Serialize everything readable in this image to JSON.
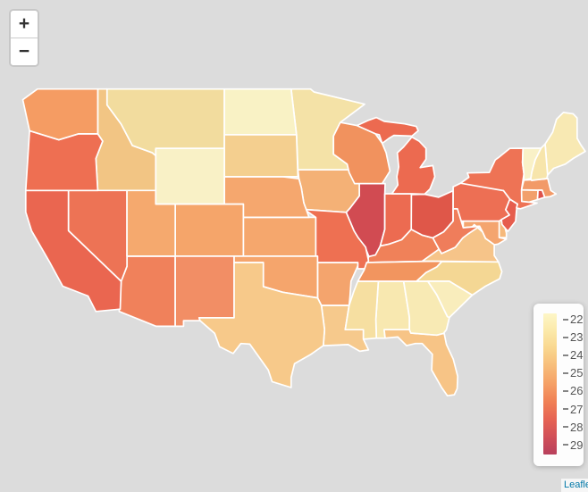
{
  "map": {
    "background_color": "#dcdcdc",
    "border_color": "#ffffff"
  },
  "zoom_control": {
    "zoom_in_label": "+",
    "zoom_out_label": "−"
  },
  "attribution": {
    "text": "Leaflet"
  },
  "legend": {
    "ticks": [
      "22",
      "23",
      "24",
      "25",
      "26",
      "27",
      "28",
      "29"
    ],
    "gradient_stops": [
      "#FDF6C7",
      "#FBE9A9",
      "#F9D68E",
      "#F7BC79",
      "#F5A066",
      "#F08055",
      "#E66353",
      "#D14F58",
      "#B8405C"
    ]
  },
  "states": [
    {
      "name": "Alabama",
      "abbr": "AL",
      "value": 22.7,
      "color": "#F8E8B0"
    },
    {
      "name": "Arizona",
      "abbr": "AZ",
      "value": 26.5,
      "color": "#F0815B"
    },
    {
      "name": "Arkansas",
      "abbr": "AR",
      "value": 25.3,
      "color": "#F4A46D"
    },
    {
      "name": "California",
      "abbr": "CA",
      "value": 27.3,
      "color": "#EA6650"
    },
    {
      "name": "Colorado",
      "abbr": "CO",
      "value": 25.3,
      "color": "#F5A56A"
    },
    {
      "name": "Connecticut",
      "abbr": "CT",
      "value": 25.5,
      "color": "#F2A06C"
    },
    {
      "name": "Delaware",
      "abbr": "DE",
      "value": 24.7,
      "color": "#F6B97B"
    },
    {
      "name": "Florida",
      "abbr": "FL",
      "value": 24.4,
      "color": "#F7C486"
    },
    {
      "name": "Georgia",
      "abbr": "GA",
      "value": 22.6,
      "color": "#F8EAB4"
    },
    {
      "name": "Idaho",
      "abbr": "ID",
      "value": 24.3,
      "color": "#F2C584"
    },
    {
      "name": "Illinois",
      "abbr": "IL",
      "value": 28.6,
      "color": "#D14B52"
    },
    {
      "name": "Indiana",
      "abbr": "IN",
      "value": 27.2,
      "color": "#EC6B51"
    },
    {
      "name": "Iowa",
      "abbr": "IA",
      "value": 24.9,
      "color": "#F4B176"
    },
    {
      "name": "Kansas",
      "abbr": "KS",
      "value": 25.2,
      "color": "#F5A76D"
    },
    {
      "name": "Kentucky",
      "abbr": "KY",
      "value": 26.5,
      "color": "#F08159"
    },
    {
      "name": "Louisiana",
      "abbr": "LA",
      "value": 24.2,
      "color": "#F6C98C"
    },
    {
      "name": "Maine",
      "abbr": "ME",
      "value": 22.8,
      "color": "#F8E9B3"
    },
    {
      "name": "Maryland",
      "abbr": "MD",
      "value": 25.3,
      "color": "#F4A56F"
    },
    {
      "name": "Massachusetts",
      "abbr": "MA",
      "value": 25.7,
      "color": "#F29A68"
    },
    {
      "name": "Michigan",
      "abbr": "MI",
      "value": 27.2,
      "color": "#EC6A50"
    },
    {
      "name": "Minnesota",
      "abbr": "MN",
      "value": 23.1,
      "color": "#F4E2A7"
    },
    {
      "name": "Mississippi",
      "abbr": "MS",
      "value": 23.2,
      "color": "#F6DFA1"
    },
    {
      "name": "Missouri",
      "abbr": "MO",
      "value": 27.0,
      "color": "#EE7052"
    },
    {
      "name": "Montana",
      "abbr": "MT",
      "value": 23.3,
      "color": "#F2DC9E"
    },
    {
      "name": "Nebraska",
      "abbr": "NE",
      "value": 25.2,
      "color": "#F5A76E"
    },
    {
      "name": "Nevada",
      "abbr": "NV",
      "value": 26.9,
      "color": "#ED7355"
    },
    {
      "name": "New Hampshire",
      "abbr": "NH",
      "value": 22.9,
      "color": "#F7E5AB"
    },
    {
      "name": "New Jersey",
      "abbr": "NJ",
      "value": 27.6,
      "color": "#E65D4D"
    },
    {
      "name": "New Mexico",
      "abbr": "NM",
      "value": 26.2,
      "color": "#F28E65"
    },
    {
      "name": "New York",
      "abbr": "NY",
      "value": 26.9,
      "color": "#EE7355"
    },
    {
      "name": "North Carolina",
      "abbr": "NC",
      "value": 23.7,
      "color": "#F4D794"
    },
    {
      "name": "North Dakota",
      "abbr": "ND",
      "value": 22.2,
      "color": "#F9F2C5"
    },
    {
      "name": "Ohio",
      "abbr": "OH",
      "value": 27.9,
      "color": "#DF5749"
    },
    {
      "name": "Oklahoma",
      "abbr": "OK",
      "value": 25.3,
      "color": "#F5A56C"
    },
    {
      "name": "Oregon",
      "abbr": "OR",
      "value": 27.0,
      "color": "#EE6F52"
    },
    {
      "name": "Pennsylvania",
      "abbr": "PA",
      "value": 27.0,
      "color": "#ED6F54"
    },
    {
      "name": "Rhode Island",
      "abbr": "RI",
      "value": 28.1,
      "color": "#DE524B"
    },
    {
      "name": "South Carolina",
      "abbr": "SC",
      "value": 22.4,
      "color": "#F9EDBC"
    },
    {
      "name": "South Dakota",
      "abbr": "SD",
      "value": 24.0,
      "color": "#F4CF8F"
    },
    {
      "name": "Tennessee",
      "abbr": "TN",
      "value": 26.0,
      "color": "#F2955F"
    },
    {
      "name": "Texas",
      "abbr": "TX",
      "value": 24.2,
      "color": "#F7C98A"
    },
    {
      "name": "Utah",
      "abbr": "UT",
      "value": 25.2,
      "color": "#F5A96E"
    },
    {
      "name": "Vermont",
      "abbr": "VT",
      "value": 22.2,
      "color": "#F9F1C7"
    },
    {
      "name": "Virginia",
      "abbr": "VA",
      "value": 24.4,
      "color": "#F6C489"
    },
    {
      "name": "Washington",
      "abbr": "WA",
      "value": 25.8,
      "color": "#F59C63"
    },
    {
      "name": "West Virginia",
      "abbr": "WV",
      "value": 26.6,
      "color": "#EF7D5B"
    },
    {
      "name": "Wisconsin",
      "abbr": "WI",
      "value": 26.1,
      "color": "#F1925E"
    },
    {
      "name": "Wyoming",
      "abbr": "WY",
      "value": 22.2,
      "color": "#F9F1C6"
    }
  ],
  "chart_data": {
    "type": "choropleth",
    "region": "United States (lower 48 states)",
    "legend_range": [
      22,
      29
    ],
    "legend_ticks": [
      22,
      23,
      24,
      25,
      26,
      27,
      28,
      29
    ],
    "values": {
      "AL": 22.7,
      "AZ": 26.5,
      "AR": 25.3,
      "CA": 27.3,
      "CO": 25.3,
      "CT": 25.5,
      "DE": 24.7,
      "FL": 24.4,
      "GA": 22.6,
      "ID": 24.3,
      "IL": 28.6,
      "IN": 27.2,
      "IA": 24.9,
      "KS": 25.2,
      "KY": 26.5,
      "LA": 24.2,
      "ME": 22.8,
      "MD": 25.3,
      "MA": 25.7,
      "MI": 27.2,
      "MN": 23.1,
      "MS": 23.2,
      "MO": 27.0,
      "MT": 23.3,
      "NE": 25.2,
      "NV": 26.9,
      "NH": 22.9,
      "NJ": 27.6,
      "NM": 26.2,
      "NY": 26.9,
      "NC": 23.7,
      "ND": 22.2,
      "OH": 27.9,
      "OK": 25.3,
      "OR": 27.0,
      "PA": 27.0,
      "RI": 28.1,
      "SC": 22.4,
      "SD": 24.0,
      "TN": 26.0,
      "TX": 24.2,
      "UT": 25.2,
      "VT": 22.2,
      "VA": 24.4,
      "WA": 25.8,
      "WV": 26.6,
      "WI": 26.1,
      "WY": 22.2
    }
  }
}
